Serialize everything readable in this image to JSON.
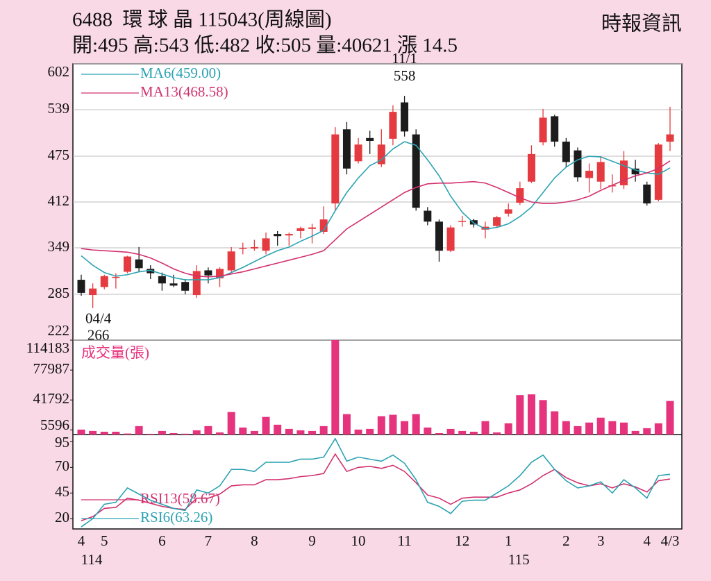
{
  "header": {
    "title": "6488  環 球 晶 115043(周線圖)",
    "source": "時報資訊",
    "quote": "開:495 高:543 低:482 收:505 量:40621 漲 14.5"
  },
  "chart_data": [
    {
      "type": "candlestick",
      "categories": [
        "4",
        null,
        "5",
        null,
        null,
        null,
        null,
        "6",
        null,
        null,
        null,
        "7",
        null,
        null,
        null,
        "8",
        null,
        null,
        null,
        null,
        "9",
        null,
        null,
        null,
        "10",
        null,
        null,
        null,
        "11",
        null,
        null,
        null,
        null,
        "12",
        null,
        null,
        null,
        "1",
        null,
        null,
        null,
        null,
        "2",
        null,
        null,
        "3",
        null,
        null,
        null,
        "4",
        null,
        "4/3"
      ],
      "year_labels": [
        "114",
        null,
        null,
        null,
        null,
        null,
        null,
        null,
        null,
        null,
        null,
        null,
        null,
        null,
        null,
        null,
        null,
        null,
        null,
        null,
        null,
        null,
        null,
        null,
        null,
        null,
        null,
        null,
        null,
        null,
        null,
        null,
        null,
        null,
        null,
        null,
        null,
        "115",
        null,
        null,
        null,
        null,
        null,
        null,
        null,
        null,
        null,
        null,
        null,
        null,
        null,
        null
      ],
      "open": [
        305,
        284,
        295,
        308,
        316,
        333,
        320,
        310,
        300,
        302,
        284,
        318,
        307,
        318,
        348,
        348,
        345,
        368,
        366,
        372,
        375,
        371,
        410,
        512,
        468,
        500,
        464,
        499,
        549,
        505,
        400,
        385,
        345,
        386,
        387,
        374,
        379,
        396,
        411,
        440,
        494,
        530,
        495,
        483,
        445,
        440,
        434,
        435,
        458,
        436,
        415,
        495
      ],
      "high": [
        312,
        300,
        312,
        314,
        338,
        350,
        325,
        315,
        312,
        306,
        325,
        322,
        322,
        350,
        356,
        360,
        370,
        372,
        370,
        378,
        382,
        406,
        515,
        522,
        500,
        510,
        512,
        545,
        558,
        512,
        405,
        388,
        380,
        393,
        389,
        385,
        393,
        410,
        440,
        490,
        540,
        532,
        500,
        487,
        465,
        475,
        450,
        482,
        470,
        440,
        493,
        543
      ],
      "low": [
        283,
        266,
        292,
        293,
        314,
        316,
        306,
        290,
        295,
        285,
        280,
        300,
        295,
        316,
        340,
        345,
        340,
        352,
        352,
        362,
        355,
        368,
        400,
        450,
        465,
        478,
        460,
        490,
        502,
        400,
        380,
        330,
        343,
        378,
        377,
        362,
        377,
        392,
        408,
        438,
        490,
        488,
        460,
        440,
        425,
        430,
        425,
        430,
        440,
        407,
        413,
        482
      ],
      "close": [
        287,
        293,
        310,
        309,
        337,
        321,
        314,
        300,
        297,
        290,
        317,
        311,
        320,
        344,
        349,
        350,
        362,
        365,
        368,
        376,
        377,
        388,
        505,
        458,
        491,
        496,
        491,
        536,
        509,
        404,
        385,
        345,
        377,
        386,
        381,
        378,
        391,
        402,
        431,
        478,
        528,
        495,
        467,
        446,
        455,
        467,
        435,
        469,
        450,
        410,
        491,
        505
      ],
      "up_color": "#e53a3f",
      "down_color": "#1c1c1c",
      "series": [
        {
          "name": "MA6(459.00)",
          "color": "#2ba2b3",
          "values": [
            338,
            325,
            315,
            310,
            312,
            316,
            318,
            313,
            308,
            305,
            305,
            305,
            308,
            315,
            322,
            330,
            338,
            345,
            350,
            358,
            365,
            373,
            400,
            425,
            445,
            462,
            470,
            485,
            495,
            490,
            470,
            448,
            420,
            398,
            383,
            375,
            377,
            382,
            392,
            405,
            425,
            445,
            460,
            470,
            475,
            474,
            468,
            462,
            456,
            452,
            450,
            459.0
          ]
        },
        {
          "name": "MA13(468.58)",
          "color": "#d2306e",
          "values": [
            348,
            346,
            345,
            344,
            343,
            340,
            335,
            328,
            320,
            314,
            310,
            309,
            310,
            313,
            316,
            320,
            324,
            328,
            332,
            336,
            340,
            345,
            360,
            375,
            385,
            395,
            405,
            415,
            425,
            432,
            437,
            438,
            438,
            439,
            440,
            438,
            432,
            425,
            418,
            412,
            410,
            410,
            412,
            415,
            420,
            428,
            435,
            442,
            448,
            452,
            458,
            468.58
          ]
        }
      ],
      "annotations": [
        {
          "label": "11/1",
          "value": 558
        },
        {
          "label": "04/4",
          "value": 266
        }
      ],
      "ylim": [
        222,
        602
      ],
      "yticks": [
        222,
        285,
        349,
        412,
        475,
        539,
        602
      ],
      "grid": true
    },
    {
      "type": "bar",
      "title": "成交量(張)",
      "color": "#e6337d",
      "values": [
        6000,
        4300,
        3400,
        3400,
        1200,
        10200,
        900,
        4300,
        1700,
        1000,
        5100,
        10200,
        2600,
        27300,
        8500,
        4300,
        21300,
        11900,
        6800,
        5100,
        4300,
        10200,
        114183,
        24700,
        6000,
        6800,
        22200,
        23900,
        16200,
        24700,
        8500,
        1700,
        6800,
        4300,
        3400,
        16200,
        2600,
        13600,
        47700,
        48600,
        41700,
        28100,
        16200,
        10200,
        14500,
        20400,
        16200,
        14500,
        4300,
        7700,
        13600,
        40621
      ],
      "ylim": [
        0,
        114183
      ],
      "yticks": [
        5596,
        41792,
        77987,
        114183
      ]
    },
    {
      "type": "line",
      "series": [
        {
          "name": "RSI13(58.67)",
          "color": "#d2306e",
          "values": [
            18,
            22,
            30,
            31,
            40,
            38,
            35,
            32,
            30,
            29,
            40,
            40,
            44,
            52,
            53,
            53,
            58,
            58,
            59,
            61,
            62,
            64,
            83,
            66,
            70,
            71,
            69,
            72,
            66,
            55,
            43,
            40,
            34,
            40,
            41,
            41,
            41,
            45,
            48,
            54,
            62,
            68,
            60,
            55,
            52,
            54,
            50,
            54,
            51,
            46,
            57,
            58.67
          ]
        },
        {
          "name": "RSI6(63.26)",
          "color": "#2ba2b3",
          "values": [
            12,
            20,
            34,
            36,
            50,
            44,
            38,
            34,
            30,
            28,
            48,
            45,
            52,
            68,
            68,
            66,
            75,
            75,
            75,
            78,
            78,
            80,
            98,
            76,
            80,
            78,
            76,
            82,
            74,
            58,
            36,
            32,
            25,
            37,
            38,
            38,
            45,
            52,
            62,
            75,
            82,
            68,
            57,
            50,
            52,
            56,
            45,
            58,
            50,
            40,
            62,
            63.26
          ]
        }
      ],
      "ylim": [
        10,
        102
      ],
      "yticks": [
        20,
        45,
        70,
        95
      ]
    }
  ]
}
